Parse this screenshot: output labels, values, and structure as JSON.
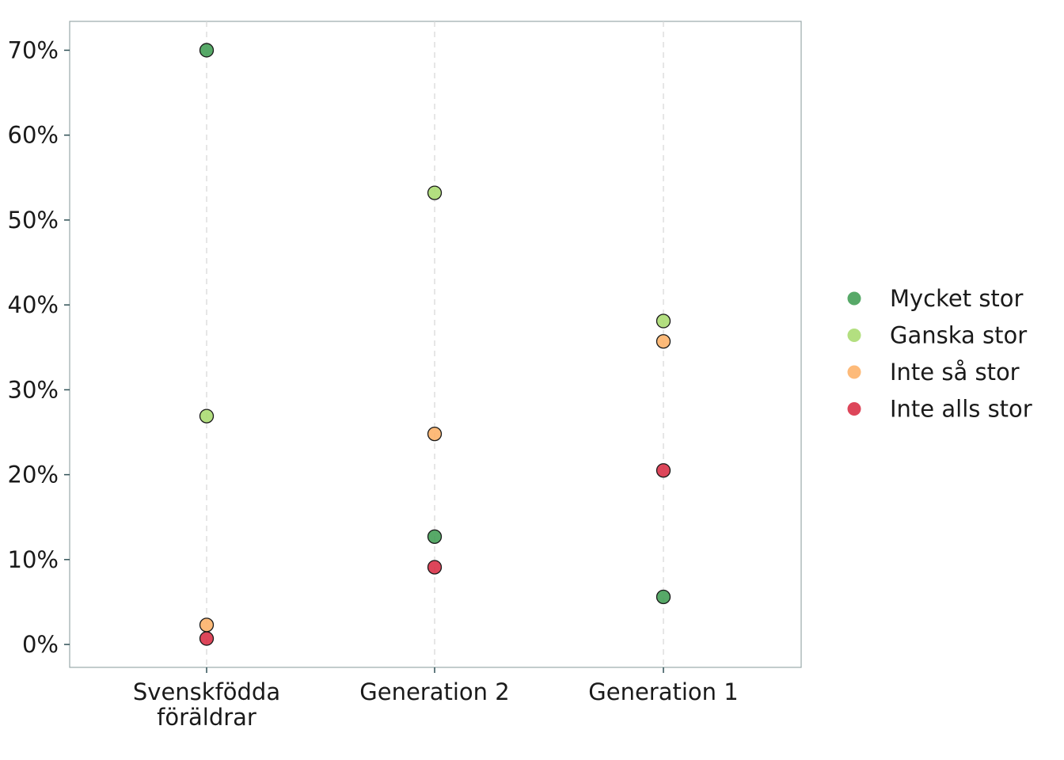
{
  "chart_data": {
    "type": "scatter",
    "title": "",
    "xlabel": "",
    "ylabel": "",
    "categories": [
      [
        "Svenskfödda",
        "föräldrar"
      ],
      [
        "Generation 2"
      ],
      [
        "Generation 1"
      ]
    ],
    "y_ticks": [
      "0%",
      "10%",
      "20%",
      "30%",
      "40%",
      "50%",
      "60%",
      "70%"
    ],
    "ylim": [
      -2.7,
      73.4
    ],
    "y_unit": "%",
    "grid": "vertical dashed at categories",
    "legend_position": "right",
    "series": [
      {
        "name": "Mycket stor",
        "color": "#3a9a4e",
        "values": [
          70.0,
          12.7,
          5.6
        ]
      },
      {
        "name": "Ganska stor",
        "color": "#a6d96a",
        "values": [
          26.9,
          53.2,
          38.1
        ]
      },
      {
        "name": "Inte så stor",
        "color": "#fdae61",
        "values": [
          2.3,
          24.8,
          35.7
        ]
      },
      {
        "name": "Inte alls stor",
        "color": "#d7263d",
        "values": [
          0.7,
          9.1,
          20.5
        ]
      }
    ]
  }
}
